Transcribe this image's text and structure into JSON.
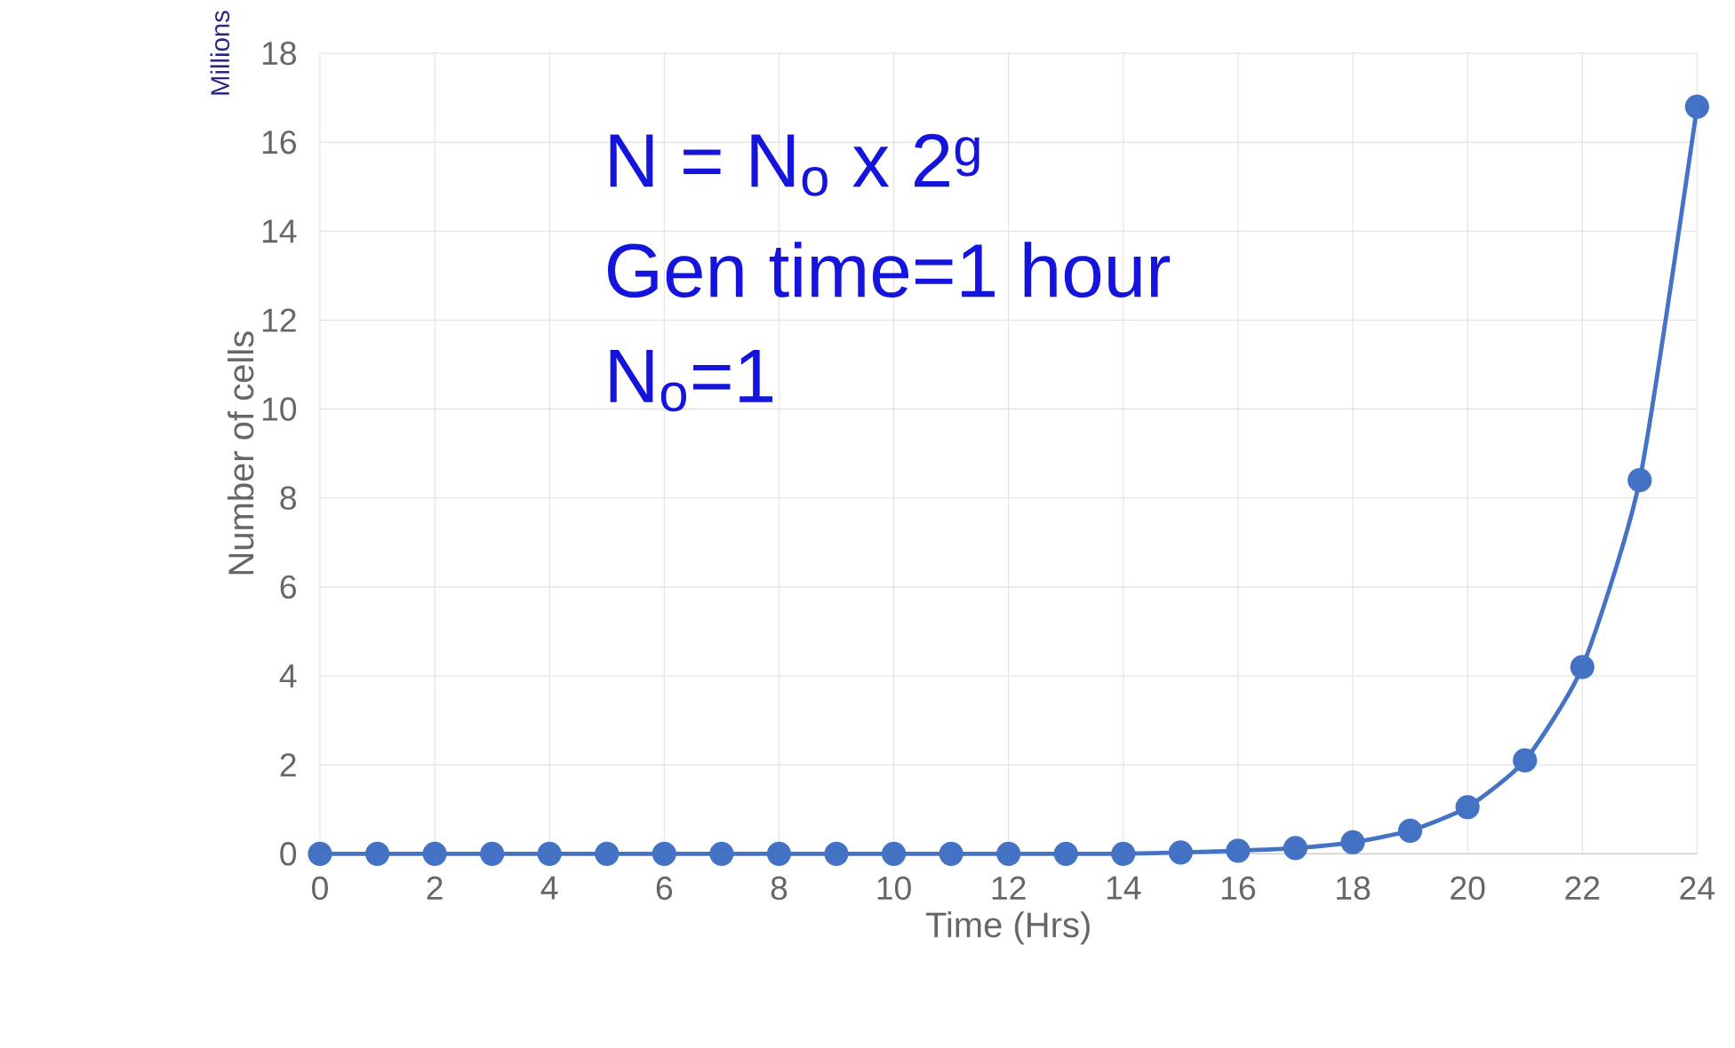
{
  "chart_data": {
    "type": "line",
    "xlabel": "Time (Hrs)",
    "ylabel": "Number of cells",
    "annotations": [
      "Millions",
      "N = N$_{o}$ x 2$^{g}$",
      "Gen time=1 hour",
      "N$_{o}$=1"
    ],
    "x": [
      0,
      1,
      2,
      3,
      4,
      5,
      6,
      7,
      8,
      9,
      10,
      11,
      12,
      13,
      14,
      15,
      16,
      17,
      18,
      19,
      20,
      21,
      22,
      23,
      24
    ],
    "series": [
      {
        "color": "#4472c4",
        "values": [
          0,
          0,
          0,
          0,
          0,
          0,
          0,
          0,
          0,
          0,
          0,
          0,
          0,
          0,
          0,
          0.03,
          0.07,
          0.13,
          0.26,
          0.52,
          1.05,
          2.1,
          4.2,
          8.4,
          16.8
        ]
      }
    ],
    "xlim": [
      0,
      24
    ],
    "ylim": [
      0,
      18
    ],
    "xticks": [
      0,
      2,
      4,
      6,
      8,
      10,
      12,
      14,
      16,
      18,
      20,
      22,
      24
    ],
    "yticks": [
      0,
      2,
      4,
      6,
      8,
      10,
      12,
      14,
      16,
      18
    ],
    "grid": true,
    "marker": "circle",
    "line_style": "solid"
  }
}
